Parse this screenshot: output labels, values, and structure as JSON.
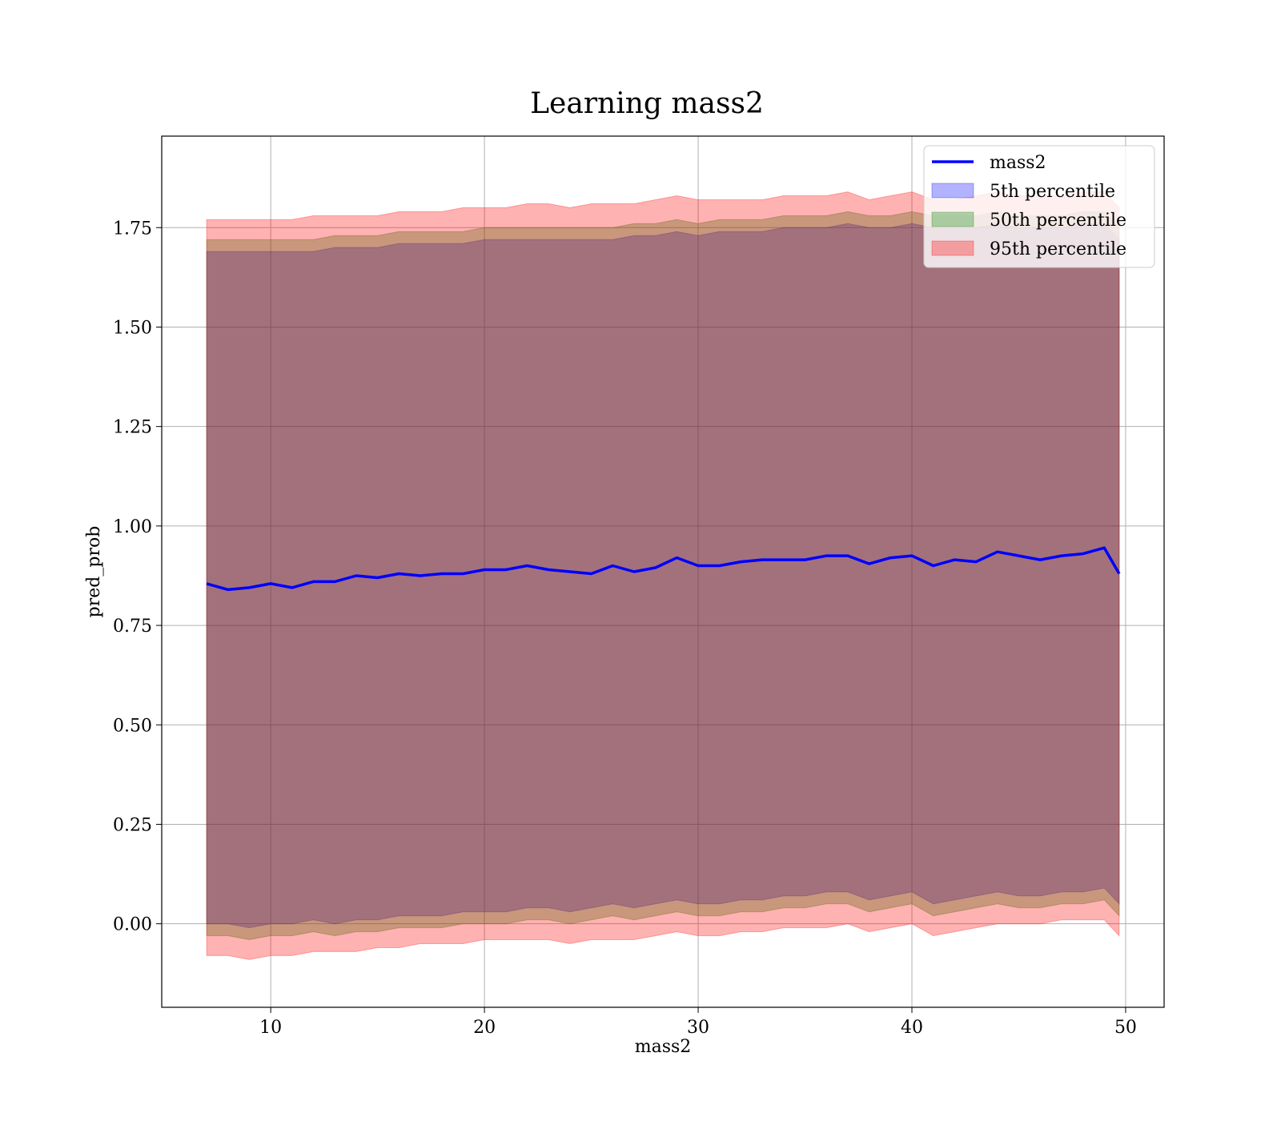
{
  "chart_data": {
    "type": "line",
    "title": "Learning mass2",
    "xlabel": "mass2",
    "ylabel": "pred_prob",
    "xlim": [
      4.9,
      51.8
    ],
    "ylim": [
      -0.21,
      1.98
    ],
    "x_ticks": [
      10,
      20,
      30,
      40,
      50
    ],
    "x_tick_labels": [
      "10",
      "20",
      "30",
      "40",
      "50"
    ],
    "y_ticks": [
      0.0,
      0.25,
      0.5,
      0.75,
      1.0,
      1.25,
      1.5,
      1.75
    ],
    "y_tick_labels": [
      "0.00",
      "0.25",
      "0.50",
      "0.75",
      "1.00",
      "1.25",
      "1.50",
      "1.75"
    ],
    "grid": true,
    "legend_position": "top-right",
    "x": [
      7.0,
      8.0,
      9.0,
      10.0,
      11.0,
      12.0,
      13.0,
      14.0,
      15.0,
      16.0,
      17.0,
      18.0,
      19.0,
      20.0,
      21.0,
      22.0,
      23.0,
      24.0,
      25.0,
      26.0,
      27.0,
      28.0,
      29.0,
      30.0,
      31.0,
      32.0,
      33.0,
      34.0,
      35.0,
      36.0,
      37.0,
      38.0,
      39.0,
      40.0,
      41.0,
      42.0,
      43.0,
      44.0,
      45.0,
      46.0,
      47.0,
      48.0,
      49.0,
      49.7
    ],
    "series": [
      {
        "name": "mass2",
        "kind": "line",
        "color": "#0000ff",
        "values": [
          0.855,
          0.84,
          0.845,
          0.855,
          0.845,
          0.86,
          0.86,
          0.875,
          0.87,
          0.88,
          0.875,
          0.88,
          0.88,
          0.89,
          0.89,
          0.9,
          0.89,
          0.885,
          0.88,
          0.9,
          0.885,
          0.895,
          0.92,
          0.9,
          0.9,
          0.91,
          0.915,
          0.915,
          0.915,
          0.925,
          0.925,
          0.905,
          0.92,
          0.925,
          0.9,
          0.915,
          0.91,
          0.935,
          0.925,
          0.915,
          0.925,
          0.93,
          0.945,
          0.88
        ]
      },
      {
        "name": "5th percentile",
        "kind": "band",
        "color": "#0000ff",
        "lower": [
          0.0,
          0.0,
          -0.01,
          0.0,
          0.0,
          0.01,
          0.0,
          0.01,
          0.01,
          0.02,
          0.02,
          0.02,
          0.03,
          0.03,
          0.03,
          0.04,
          0.04,
          0.03,
          0.04,
          0.05,
          0.04,
          0.05,
          0.06,
          0.05,
          0.05,
          0.06,
          0.06,
          0.07,
          0.07,
          0.08,
          0.08,
          0.06,
          0.07,
          0.08,
          0.05,
          0.06,
          0.07,
          0.08,
          0.07,
          0.07,
          0.08,
          0.08,
          0.09,
          0.05
        ],
        "upper": [
          1.69,
          1.69,
          1.69,
          1.69,
          1.69,
          1.69,
          1.7,
          1.7,
          1.7,
          1.71,
          1.71,
          1.71,
          1.71,
          1.72,
          1.72,
          1.72,
          1.72,
          1.72,
          1.72,
          1.72,
          1.73,
          1.73,
          1.74,
          1.73,
          1.74,
          1.74,
          1.74,
          1.75,
          1.75,
          1.75,
          1.76,
          1.75,
          1.75,
          1.76,
          1.75,
          1.75,
          1.75,
          1.76,
          1.75,
          1.75,
          1.75,
          1.76,
          1.76,
          1.72
        ]
      },
      {
        "name": "50th percentile",
        "kind": "band",
        "color": "#008000",
        "lower": [
          -0.03,
          -0.03,
          -0.04,
          -0.03,
          -0.03,
          -0.02,
          -0.03,
          -0.02,
          -0.02,
          -0.01,
          -0.01,
          -0.01,
          0.0,
          0.0,
          0.0,
          0.01,
          0.01,
          0.0,
          0.01,
          0.02,
          0.01,
          0.02,
          0.03,
          0.02,
          0.02,
          0.03,
          0.03,
          0.04,
          0.04,
          0.05,
          0.05,
          0.03,
          0.04,
          0.05,
          0.02,
          0.03,
          0.04,
          0.05,
          0.04,
          0.04,
          0.05,
          0.05,
          0.06,
          0.02
        ],
        "upper": [
          1.72,
          1.72,
          1.72,
          1.72,
          1.72,
          1.72,
          1.73,
          1.73,
          1.73,
          1.74,
          1.74,
          1.74,
          1.74,
          1.75,
          1.75,
          1.75,
          1.75,
          1.75,
          1.75,
          1.75,
          1.76,
          1.76,
          1.77,
          1.76,
          1.77,
          1.77,
          1.77,
          1.78,
          1.78,
          1.78,
          1.79,
          1.78,
          1.78,
          1.79,
          1.78,
          1.78,
          1.78,
          1.79,
          1.78,
          1.78,
          1.78,
          1.79,
          1.79,
          1.75
        ]
      },
      {
        "name": "95th percentile",
        "kind": "band",
        "color": "#ff0000",
        "lower": [
          -0.08,
          -0.08,
          -0.09,
          -0.08,
          -0.08,
          -0.07,
          -0.07,
          -0.07,
          -0.06,
          -0.06,
          -0.05,
          -0.05,
          -0.05,
          -0.04,
          -0.04,
          -0.04,
          -0.04,
          -0.05,
          -0.04,
          -0.04,
          -0.04,
          -0.03,
          -0.02,
          -0.03,
          -0.03,
          -0.02,
          -0.02,
          -0.01,
          -0.01,
          -0.01,
          0.0,
          -0.02,
          -0.01,
          0.0,
          -0.03,
          -0.02,
          -0.01,
          0.0,
          0.0,
          0.0,
          0.01,
          0.01,
          0.01,
          -0.03
        ],
        "upper": [
          1.77,
          1.77,
          1.77,
          1.77,
          1.77,
          1.78,
          1.78,
          1.78,
          1.78,
          1.79,
          1.79,
          1.79,
          1.8,
          1.8,
          1.8,
          1.81,
          1.81,
          1.8,
          1.81,
          1.81,
          1.81,
          1.82,
          1.83,
          1.82,
          1.82,
          1.82,
          1.82,
          1.83,
          1.83,
          1.83,
          1.84,
          1.82,
          1.83,
          1.84,
          1.82,
          1.82,
          1.83,
          1.84,
          1.83,
          1.83,
          1.83,
          1.84,
          1.84,
          1.8
        ]
      }
    ]
  },
  "legend": [
    {
      "label": "mass2",
      "kind": "line",
      "color": "#0000ff"
    },
    {
      "label": "5th percentile",
      "kind": "patch",
      "color": "#0000ff"
    },
    {
      "label": "50th percentile",
      "kind": "patch",
      "color": "#008000"
    },
    {
      "label": "95th percentile",
      "kind": "patch",
      "color": "#ff0000"
    }
  ]
}
